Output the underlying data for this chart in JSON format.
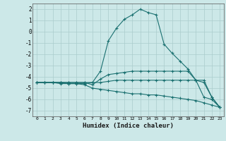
{
  "xlabel": "Humidex (Indice chaleur)",
  "ylabel": "",
  "xlim": [
    -0.5,
    23.5
  ],
  "ylim": [
    -7.5,
    2.5
  ],
  "yticks": [
    2,
    1,
    0,
    -1,
    -2,
    -3,
    -4,
    -5,
    -6,
    -7
  ],
  "xticks": [
    0,
    1,
    2,
    3,
    4,
    5,
    6,
    7,
    8,
    9,
    10,
    11,
    12,
    13,
    14,
    15,
    16,
    17,
    18,
    19,
    20,
    21,
    22,
    23
  ],
  "background_color": "#cce8e8",
  "grid_color": "#aacccc",
  "line_color": "#1a7070",
  "series": [
    {
      "x": [
        0,
        1,
        2,
        3,
        4,
        5,
        6,
        7,
        8,
        9,
        10,
        11,
        12,
        13,
        14,
        15,
        16,
        17,
        18,
        19,
        20,
        21,
        22,
        23
      ],
      "y": [
        -4.5,
        -4.5,
        -4.5,
        -4.6,
        -4.6,
        -4.6,
        -4.6,
        -4.5,
        -3.5,
        -0.8,
        0.3,
        1.1,
        1.5,
        2.0,
        1.7,
        1.5,
        -1.1,
        -1.9,
        -2.6,
        -3.3,
        -4.3,
        -5.8,
        -6.0,
        -6.7
      ],
      "marker": "+"
    },
    {
      "x": [
        0,
        1,
        2,
        3,
        4,
        5,
        6,
        7,
        8,
        9,
        10,
        11,
        12,
        13,
        14,
        15,
        16,
        17,
        18,
        19,
        20,
        21,
        22,
        23
      ],
      "y": [
        -4.5,
        -4.5,
        -4.5,
        -4.5,
        -4.5,
        -4.5,
        -4.5,
        -4.7,
        -4.2,
        -3.8,
        -3.7,
        -3.6,
        -3.5,
        -3.5,
        -3.5,
        -3.5,
        -3.5,
        -3.5,
        -3.5,
        -3.5,
        -4.3,
        -4.5,
        -5.8,
        -6.7
      ],
      "marker": "+"
    },
    {
      "x": [
        0,
        1,
        2,
        3,
        4,
        5,
        6,
        7,
        8,
        9,
        10,
        11,
        12,
        13,
        14,
        15,
        16,
        17,
        18,
        19,
        20,
        21,
        22,
        23
      ],
      "y": [
        -4.5,
        -4.5,
        -4.5,
        -4.5,
        -4.5,
        -4.5,
        -4.5,
        -4.5,
        -4.5,
        -4.4,
        -4.3,
        -4.3,
        -4.3,
        -4.3,
        -4.3,
        -4.3,
        -4.3,
        -4.3,
        -4.3,
        -4.3,
        -4.3,
        -4.3,
        -5.8,
        -6.7
      ],
      "marker": "+"
    },
    {
      "x": [
        0,
        1,
        2,
        3,
        4,
        5,
        6,
        7,
        8,
        9,
        10,
        11,
        12,
        13,
        14,
        15,
        16,
        17,
        18,
        19,
        20,
        21,
        22,
        23
      ],
      "y": [
        -4.5,
        -4.5,
        -4.5,
        -4.5,
        -4.6,
        -4.6,
        -4.7,
        -5.0,
        -5.1,
        -5.2,
        -5.3,
        -5.4,
        -5.5,
        -5.5,
        -5.6,
        -5.6,
        -5.7,
        -5.8,
        -5.9,
        -6.0,
        -6.1,
        -6.3,
        -6.5,
        -6.7
      ],
      "marker": "+"
    }
  ]
}
